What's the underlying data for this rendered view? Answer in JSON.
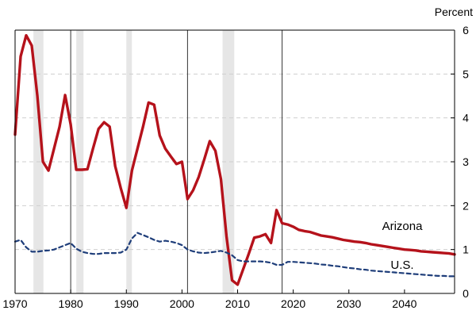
{
  "chart_data": {
    "type": "line",
    "title": "",
    "xlabel": "",
    "ylabel": "Percent",
    "xlim": [
      1970,
      2049
    ],
    "ylim": [
      0,
      6
    ],
    "x_ticks": [
      1970,
      1980,
      1990,
      2000,
      2010,
      2020,
      2030,
      2040
    ],
    "y_ticks": [
      0,
      1,
      2,
      3,
      4,
      5,
      6
    ],
    "y_axis_side": "right",
    "grid": "horizontal-dashed",
    "recession_bands": [
      [
        1973.3,
        1975.1
      ],
      [
        1981.0,
        1982.3
      ],
      [
        1990.0,
        1991.0
      ],
      [
        2007.3,
        2009.4
      ]
    ],
    "vertical_lines": [
      1980,
      2001,
      2018
    ],
    "series": [
      {
        "name": "Arizona",
        "style": "solid",
        "color": "#b5121b",
        "x": [
          1970,
          1971,
          1972,
          1973,
          1974,
          1975,
          1976,
          1977,
          1978,
          1979,
          1980,
          1981,
          1982,
          1983,
          1984,
          1985,
          1986,
          1987,
          1988,
          1989,
          1990,
          1991,
          1992,
          1993,
          1994,
          1995,
          1996,
          1997,
          1998,
          1999,
          2000,
          2001,
          2002,
          2003,
          2004,
          2005,
          2006,
          2007,
          2008,
          2009,
          2010,
          2011,
          2012,
          2013,
          2014,
          2015,
          2016,
          2017,
          2018,
          2019,
          2020,
          2021,
          2022,
          2023,
          2024,
          2025,
          2026,
          2027,
          2028,
          2029,
          2030,
          2031,
          2032,
          2033,
          2034,
          2035,
          2036,
          2037,
          2038,
          2039,
          2040,
          2041,
          2042,
          2043,
          2044,
          2045,
          2046,
          2047,
          2048,
          2049
        ],
        "values": [
          3.62,
          5.4,
          5.88,
          5.65,
          4.5,
          3.0,
          2.8,
          3.3,
          3.8,
          4.52,
          3.85,
          2.82,
          2.82,
          2.83,
          3.3,
          3.75,
          3.9,
          3.8,
          2.9,
          2.4,
          1.95,
          2.8,
          3.3,
          3.8,
          4.35,
          4.3,
          3.6,
          3.3,
          3.12,
          2.95,
          3.0,
          2.15,
          2.35,
          2.65,
          3.05,
          3.47,
          3.25,
          2.6,
          1.3,
          0.3,
          0.2,
          0.55,
          0.9,
          1.27,
          1.3,
          1.35,
          1.15,
          1.9,
          1.6,
          1.57,
          1.52,
          1.45,
          1.42,
          1.4,
          1.36,
          1.32,
          1.3,
          1.28,
          1.25,
          1.22,
          1.2,
          1.18,
          1.17,
          1.15,
          1.12,
          1.1,
          1.08,
          1.06,
          1.04,
          1.02,
          1.0,
          0.99,
          0.98,
          0.96,
          0.95,
          0.94,
          0.93,
          0.92,
          0.91,
          0.89
        ]
      },
      {
        "name": "U.S.",
        "style": "dashed",
        "color": "#1f3e7a",
        "x": [
          1970,
          1971,
          1972,
          1973,
          1974,
          1975,
          1976,
          1977,
          1978,
          1979,
          1980,
          1981,
          1982,
          1983,
          1984,
          1985,
          1986,
          1987,
          1988,
          1989,
          1990,
          1991,
          1992,
          1993,
          1994,
          1995,
          1996,
          1997,
          1998,
          1999,
          2000,
          2001,
          2002,
          2003,
          2004,
          2005,
          2006,
          2007,
          2008,
          2009,
          2010,
          2011,
          2012,
          2013,
          2014,
          2015,
          2016,
          2017,
          2018,
          2019,
          2020,
          2021,
          2022,
          2023,
          2024,
          2025,
          2026,
          2027,
          2028,
          2029,
          2030,
          2031,
          2032,
          2033,
          2034,
          2035,
          2036,
          2037,
          2038,
          2039,
          2040,
          2041,
          2042,
          2043,
          2044,
          2045,
          2046,
          2047,
          2048,
          2049
        ],
        "values": [
          1.18,
          1.22,
          1.05,
          0.95,
          0.95,
          0.97,
          0.98,
          1.0,
          1.05,
          1.1,
          1.15,
          1.02,
          0.95,
          0.92,
          0.9,
          0.9,
          0.92,
          0.92,
          0.92,
          0.93,
          1.0,
          1.25,
          1.38,
          1.33,
          1.28,
          1.22,
          1.18,
          1.2,
          1.18,
          1.15,
          1.1,
          1.0,
          0.96,
          0.93,
          0.92,
          0.93,
          0.95,
          0.97,
          0.93,
          0.87,
          0.76,
          0.73,
          0.73,
          0.73,
          0.73,
          0.72,
          0.7,
          0.65,
          0.65,
          0.72,
          0.72,
          0.71,
          0.7,
          0.69,
          0.68,
          0.66,
          0.65,
          0.63,
          0.62,
          0.6,
          0.58,
          0.57,
          0.55,
          0.54,
          0.52,
          0.51,
          0.5,
          0.49,
          0.48,
          0.47,
          0.46,
          0.45,
          0.44,
          0.43,
          0.42,
          0.41,
          0.4,
          0.4,
          0.39,
          0.39
        ]
      }
    ]
  }
}
